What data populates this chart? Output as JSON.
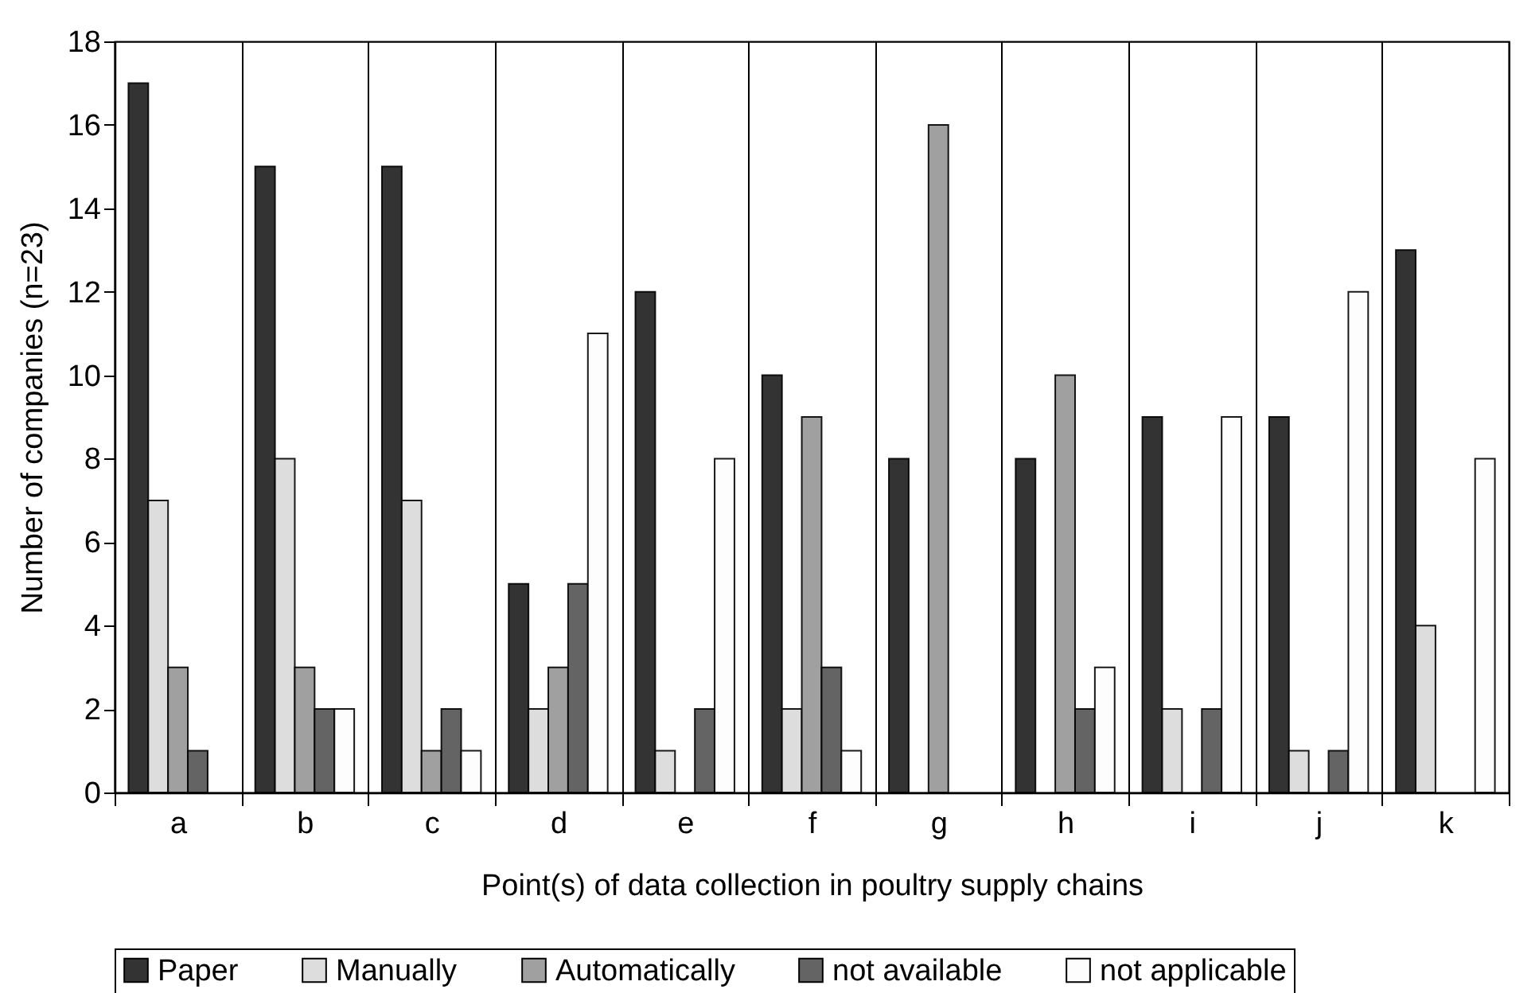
{
  "chart_data": {
    "type": "bar",
    "xlabel": "Point(s) of data collection in poultry supply chains",
    "ylabel": "Number of companies (n=23)",
    "categories": [
      "a",
      "b",
      "c",
      "d",
      "e",
      "f",
      "g",
      "h",
      "i",
      "j",
      "k"
    ],
    "series": [
      {
        "name": "Paper",
        "color": "#333333",
        "values": [
          17,
          15,
          15,
          5,
          12,
          10,
          8,
          8,
          9,
          9,
          13
        ]
      },
      {
        "name": "Manually",
        "color": "#dddddd",
        "values": [
          7,
          8,
          7,
          2,
          1,
          2,
          0,
          0,
          2,
          1,
          4
        ]
      },
      {
        "name": "Automatically",
        "color": "#a0a0a0",
        "values": [
          3,
          3,
          1,
          3,
          0,
          9,
          16,
          10,
          0,
          0,
          0
        ]
      },
      {
        "name": "not available",
        "color": "#646464",
        "values": [
          1,
          2,
          2,
          5,
          2,
          3,
          0,
          2,
          2,
          1,
          0
        ]
      },
      {
        "name": "not applicable",
        "color": "#fdfdfd",
        "values": [
          0,
          2,
          1,
          11,
          8,
          1,
          0,
          3,
          9,
          12,
          8
        ]
      }
    ],
    "ylim": [
      0,
      18
    ],
    "yticks": [
      0,
      2,
      4,
      6,
      8,
      10,
      12,
      14,
      16,
      18
    ],
    "grid": "x",
    "legend": "bottom"
  }
}
